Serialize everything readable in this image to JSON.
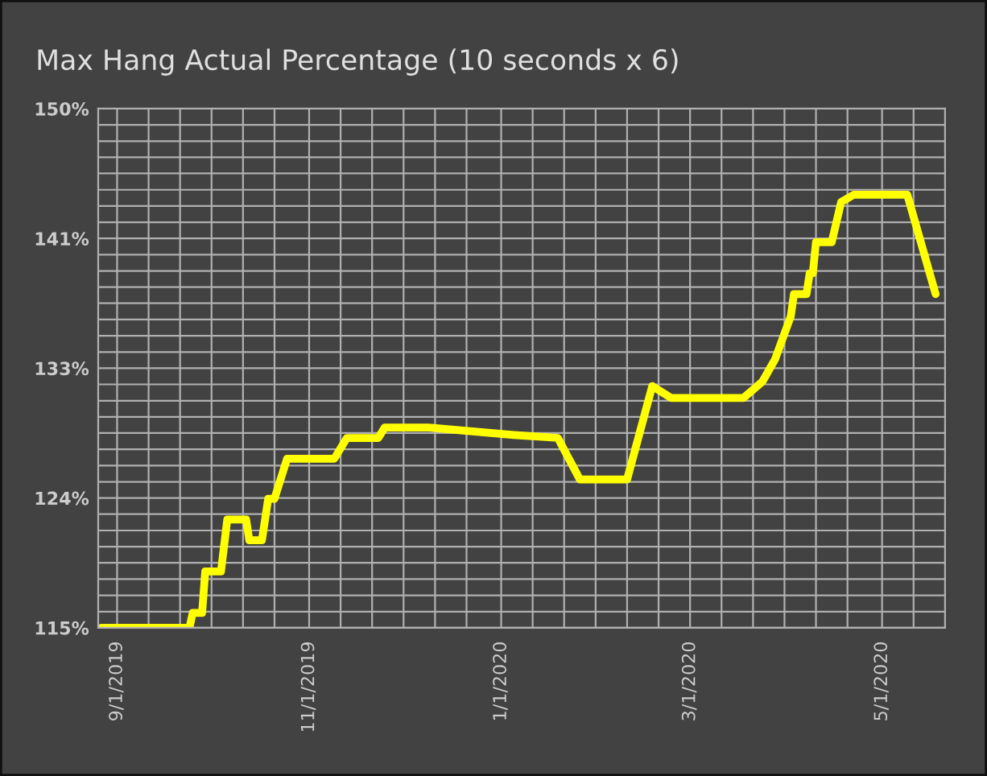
{
  "chart_data": {
    "type": "line",
    "title": "Max Hang Actual Percentage (10 seconds x 6)",
    "x": [
      "2019-08-27",
      "2019-09-24",
      "2019-09-25",
      "2019-09-28",
      "2019-09-29",
      "2019-10-04",
      "2019-10-06",
      "2019-10-12",
      "2019-10-13",
      "2019-10-17",
      "2019-10-19",
      "2019-10-21",
      "2019-10-25",
      "2019-11-09",
      "2019-11-13",
      "2019-11-23",
      "2019-11-25",
      "2019-12-09",
      "2020-01-05",
      "2020-01-19",
      "2020-01-26",
      "2020-02-10",
      "2020-02-18",
      "2020-02-24",
      "2020-03-18",
      "2020-03-24",
      "2020-03-28",
      "2020-04-02",
      "2020-04-03",
      "2020-04-07",
      "2020-04-08",
      "2020-04-09",
      "2020-04-10",
      "2020-04-15",
      "2020-04-18",
      "2020-04-22",
      "2020-05-09",
      "2020-05-18"
    ],
    "series": [
      {
        "color": "#ffff00",
        "values": [
          115,
          115,
          116,
          116,
          118.8,
          118.8,
          122.3,
          122.3,
          120.9,
          120.9,
          123.7,
          123.7,
          126.4,
          126.4,
          127.8,
          127.8,
          128.5,
          128.5,
          128,
          127.8,
          125,
          125,
          131.3,
          130.5,
          130.5,
          131.6,
          133.1,
          136,
          137.5,
          137.5,
          138.9,
          138.9,
          141,
          141,
          143.7,
          144.2,
          144.2,
          137.5
        ]
      }
    ],
    "xlim": [
      "2019-08-26",
      "2020-05-21"
    ],
    "xticks": [
      {
        "value": "2019-09-01",
        "label": "9/1/2019"
      },
      {
        "value": "2019-09-11",
        "label": null
      },
      {
        "value": "2019-09-21",
        "label": null
      },
      {
        "value": "2019-10-01",
        "label": null
      },
      {
        "value": "2019-10-11",
        "label": null
      },
      {
        "value": "2019-10-21",
        "label": null
      },
      {
        "value": "2019-11-01",
        "label": "11/1/2019"
      },
      {
        "value": "2019-11-11",
        "label": null
      },
      {
        "value": "2019-11-21",
        "label": null
      },
      {
        "value": "2019-12-01",
        "label": null
      },
      {
        "value": "2019-12-11",
        "label": null
      },
      {
        "value": "2019-12-21",
        "label": null
      },
      {
        "value": "2020-01-01",
        "label": "1/1/2020"
      },
      {
        "value": "2020-01-11",
        "label": null
      },
      {
        "value": "2020-01-21",
        "label": null
      },
      {
        "value": "2020-01-31",
        "label": null
      },
      {
        "value": "2020-02-10",
        "label": null
      },
      {
        "value": "2020-02-20",
        "label": null
      },
      {
        "value": "2020-03-01",
        "label": "3/1/2020"
      },
      {
        "value": "2020-03-11",
        "label": null
      },
      {
        "value": "2020-03-21",
        "label": null
      },
      {
        "value": "2020-03-31",
        "label": null
      },
      {
        "value": "2020-04-10",
        "label": null
      },
      {
        "value": "2020-04-20",
        "label": null
      },
      {
        "value": "2020-05-01",
        "label": "5/1/2020"
      },
      {
        "value": "2020-05-11",
        "label": null
      }
    ],
    "ylim": [
      115,
      150
    ],
    "yticks": [
      {
        "value": 115,
        "label": "115%"
      },
      {
        "value": 116.09,
        "label": null
      },
      {
        "value": 117.19,
        "label": null
      },
      {
        "value": 118.28,
        "label": null
      },
      {
        "value": 119.38,
        "label": null
      },
      {
        "value": 120.47,
        "label": null
      },
      {
        "value": 121.56,
        "label": null
      },
      {
        "value": 122.66,
        "label": null
      },
      {
        "value": 123.75,
        "label": "124%"
      },
      {
        "value": 124.84,
        "label": null
      },
      {
        "value": 125.94,
        "label": null
      },
      {
        "value": 127.03,
        "label": null
      },
      {
        "value": 128.13,
        "label": null
      },
      {
        "value": 129.22,
        "label": null
      },
      {
        "value": 130.31,
        "label": null
      },
      {
        "value": 131.41,
        "label": null
      },
      {
        "value": 132.5,
        "label": "133%"
      },
      {
        "value": 133.59,
        "label": null
      },
      {
        "value": 134.69,
        "label": null
      },
      {
        "value": 135.78,
        "label": null
      },
      {
        "value": 136.88,
        "label": null
      },
      {
        "value": 137.97,
        "label": null
      },
      {
        "value": 139.06,
        "label": null
      },
      {
        "value": 140.16,
        "label": null
      },
      {
        "value": 141.25,
        "label": "141%"
      },
      {
        "value": 142.34,
        "label": null
      },
      {
        "value": 143.44,
        "label": null
      },
      {
        "value": 144.53,
        "label": null
      },
      {
        "value": 145.63,
        "label": null
      },
      {
        "value": 146.72,
        "label": null
      },
      {
        "value": 147.81,
        "label": null
      },
      {
        "value": 148.91,
        "label": null
      },
      {
        "value": 150,
        "label": "150%"
      }
    ],
    "grid": true,
    "legend": false,
    "marker": "none",
    "line_style": "solid"
  }
}
